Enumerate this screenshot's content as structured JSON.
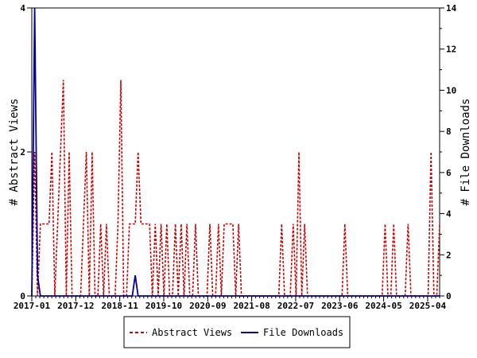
{
  "chart_data": {
    "type": "line",
    "x_tick_labels": [
      "2017-01",
      "2017-12",
      "2018-11",
      "2019-10",
      "2020-09",
      "2021-08",
      "2022-07",
      "2023-06",
      "2024-05",
      "2025-04"
    ],
    "x_start": "2017-01",
    "x_end": "2025-07",
    "y_left": {
      "label": "# Abstract Views",
      "ylim": [
        0,
        4
      ],
      "ticks": [
        0,
        2,
        4
      ]
    },
    "y_right": {
      "label": "# File Downloads",
      "ylim": [
        0,
        14
      ],
      "ticks": [
        0,
        2,
        4,
        6,
        8,
        10,
        12,
        14
      ]
    },
    "series": [
      {
        "name": "Abstract Views",
        "axis": "left",
        "color": "#cc0000",
        "style": "dashed",
        "values": [
          0,
          2,
          0,
          1,
          1,
          1,
          1,
          2,
          0,
          1,
          2,
          3,
          0,
          2,
          0,
          0,
          0,
          0,
          1,
          2,
          0,
          2,
          0,
          0,
          1,
          0,
          1,
          0,
          0,
          0,
          1,
          3,
          0,
          0,
          1,
          1,
          1,
          2,
          1,
          1,
          1,
          1,
          0,
          1,
          0,
          1,
          0,
          1,
          0,
          0,
          1,
          0,
          1,
          0,
          1,
          0,
          0,
          1,
          0,
          0,
          0,
          0,
          1,
          0,
          0,
          1,
          0,
          1,
          1,
          1,
          1,
          0,
          1,
          0,
          0,
          0,
          0,
          0,
          0,
          0,
          0,
          0,
          0,
          0,
          0,
          0,
          0,
          1,
          0,
          0,
          0,
          1,
          0,
          2,
          0,
          1,
          0,
          0,
          0,
          0,
          0,
          0,
          0,
          0,
          0,
          0,
          0,
          0,
          0,
          1,
          0,
          0,
          0,
          0,
          0,
          0,
          0,
          0,
          0,
          0,
          0,
          0,
          0,
          1,
          0,
          0,
          1,
          0,
          0,
          0,
          0,
          1,
          0,
          0,
          0,
          0,
          0,
          0,
          0,
          2,
          0,
          0,
          1
        ]
      },
      {
        "name": "File Downloads",
        "axis": "right",
        "color": "#000099",
        "style": "solid",
        "values": [
          0,
          14,
          1,
          0,
          0,
          0,
          0,
          0,
          0,
          0,
          0,
          0,
          0,
          0,
          0,
          0,
          0,
          0,
          0,
          0,
          0,
          0,
          0,
          0,
          0,
          0,
          0,
          0,
          0,
          0,
          0,
          0,
          0,
          0,
          0,
          0,
          1,
          0,
          0,
          0,
          0,
          0,
          0,
          0,
          0,
          0,
          0,
          0,
          0,
          0,
          0,
          0,
          0,
          0,
          0,
          0,
          0,
          0,
          0,
          0,
          0,
          0,
          0,
          0,
          0,
          0,
          0,
          0,
          0,
          0,
          0,
          0,
          0,
          0,
          0,
          0,
          0,
          0,
          0,
          0,
          0,
          0,
          0,
          0,
          0,
          0,
          0,
          0,
          0,
          0,
          0,
          0,
          0,
          0,
          0,
          0,
          0,
          0,
          0,
          0,
          0,
          0,
          0,
          0,
          0,
          0,
          0,
          0,
          0,
          0,
          0,
          0,
          0,
          0,
          0,
          0,
          0,
          0,
          0,
          0,
          0,
          0,
          0,
          0,
          0,
          0,
          0,
          0,
          0,
          0,
          0,
          0,
          0,
          0,
          0,
          0,
          0,
          0,
          0,
          0,
          0,
          0,
          0
        ]
      }
    ],
    "legend": {
      "position": "bottom-center",
      "items": [
        "Abstract Views",
        "File Downloads"
      ]
    },
    "grid": false
  }
}
